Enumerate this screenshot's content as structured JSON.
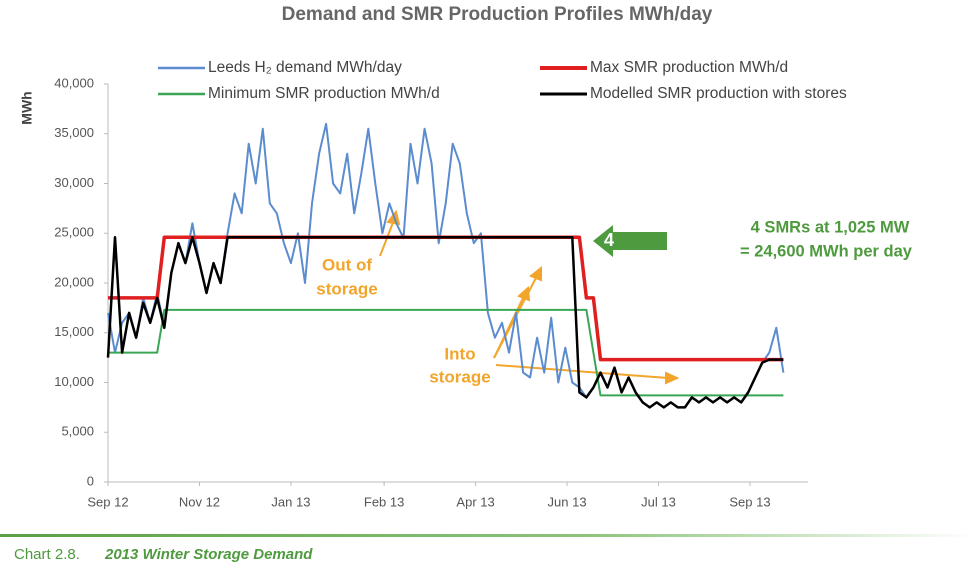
{
  "chart_data": {
    "type": "line",
    "title": "Demand and SMR Production Profiles MWh/day",
    "y_label": "MWh",
    "x": [
      0,
      4,
      8,
      12,
      16,
      20,
      24,
      28,
      32,
      36,
      40,
      44,
      48,
      52,
      56,
      60,
      64,
      68,
      72,
      76,
      80,
      84,
      88,
      92,
      96,
      100,
      104,
      108,
      112,
      116,
      120,
      124,
      128,
      132,
      136,
      140,
      144,
      148,
      152,
      156,
      160,
      164,
      168,
      172,
      176,
      180,
      184,
      188,
      192,
      196,
      200,
      204,
      208,
      212,
      216,
      220,
      224,
      228,
      232,
      236,
      240,
      244,
      248,
      252,
      256,
      260,
      264,
      268,
      272,
      276,
      280,
      284,
      288,
      292,
      296,
      300,
      304,
      308,
      312,
      316,
      320,
      324,
      328,
      332,
      336,
      340,
      344,
      348,
      352,
      356,
      360,
      364,
      368,
      372,
      376,
      380,
      384
    ],
    "xlim": [
      0,
      398
    ],
    "xticks": [
      {
        "value": 0,
        "label": "Sep 12"
      },
      {
        "value": 52,
        "label": "Nov 12"
      },
      {
        "value": 104,
        "label": "Jan 13"
      },
      {
        "value": 157,
        "label": "Feb 13"
      },
      {
        "value": 209,
        "label": "Apr 13"
      },
      {
        "value": 261,
        "label": "Jun 13"
      },
      {
        "value": 313,
        "label": "Jul 13"
      },
      {
        "value": 365,
        "label": "Sep 13"
      }
    ],
    "ylim": [
      0,
      40000
    ],
    "yticks": [
      0,
      {
        "value": 5000,
        "label": "5,000"
      },
      {
        "value": 10000,
        "label": "10,000"
      },
      {
        "value": 15000,
        "label": "15,000"
      },
      {
        "value": 20000,
        "label": "20,000"
      },
      {
        "value": 25000,
        "label": "25,000"
      },
      {
        "value": 30000,
        "label": "30,000"
      },
      {
        "value": 35000,
        "label": "35,000"
      },
      {
        "value": 40000,
        "label": "40,000"
      }
    ],
    "grid": false,
    "legend": "top",
    "series": [
      {
        "name": "Leeds H₂ demand MWh/day",
        "color": "#5b8ccf",
        "values": [
          17000,
          13000,
          16000,
          17000,
          14500,
          18500,
          16000,
          19000,
          15500,
          21000,
          24000,
          22000,
          26000,
          22000,
          19000,
          22000,
          20000,
          25000,
          29000,
          27000,
          34000,
          30000,
          35500,
          28000,
          27000,
          24000,
          22000,
          25000,
          20000,
          28000,
          33000,
          36000,
          30000,
          29000,
          33000,
          27000,
          31000,
          35500,
          30000,
          25000,
          28000,
          26000,
          24500,
          34000,
          30000,
          35500,
          32000,
          24000,
          28000,
          34000,
          32000,
          27000,
          24000,
          25000,
          17000,
          14500,
          16000,
          13000,
          17000,
          11000,
          10500,
          14500,
          11000,
          16500,
          10000,
          13500,
          10000,
          9500,
          8500,
          9500,
          11000,
          9500,
          11500,
          9000,
          10500,
          9000,
          8000,
          7500,
          8000,
          7500,
          8000,
          7500,
          7500,
          8500,
          8000,
          8500,
          8000,
          8500,
          8000,
          8500,
          8000,
          9000,
          10500,
          12000,
          13000,
          15500,
          11000
        ]
      },
      {
        "name": "Max SMR production MWh/d",
        "color": "#e02020",
        "values": [
          18500,
          18500,
          18500,
          18500,
          18500,
          18500,
          18500,
          18500,
          24600,
          24600,
          24600,
          24600,
          24600,
          24600,
          24600,
          24600,
          24600,
          24600,
          24600,
          24600,
          24600,
          24600,
          24600,
          24600,
          24600,
          24600,
          24600,
          24600,
          24600,
          24600,
          24600,
          24600,
          24600,
          24600,
          24600,
          24600,
          24600,
          24600,
          24600,
          24600,
          24600,
          24600,
          24600,
          24600,
          24600,
          24600,
          24600,
          24600,
          24600,
          24600,
          24600,
          24600,
          24600,
          24600,
          24600,
          24600,
          24600,
          24600,
          24600,
          24600,
          24600,
          24600,
          24600,
          24600,
          24600,
          24600,
          24600,
          24600,
          18500,
          18500,
          12300,
          12300,
          12300,
          12300,
          12300,
          12300,
          12300,
          12300,
          12300,
          12300,
          12300,
          12300,
          12300,
          12300,
          12300,
          12300,
          12300,
          12300,
          12300,
          12300,
          12300,
          12300,
          12300,
          12300,
          12300,
          12300,
          12300
        ]
      },
      {
        "name": "Minimum SMR production MWh/d",
        "color": "#3aa655",
        "values": [
          13000,
          13000,
          13000,
          13000,
          13000,
          13000,
          13000,
          13000,
          17300,
          17300,
          17300,
          17300,
          17300,
          17300,
          17300,
          17300,
          17300,
          17300,
          17300,
          17300,
          17300,
          17300,
          17300,
          17300,
          17300,
          17300,
          17300,
          17300,
          17300,
          17300,
          17300,
          17300,
          17300,
          17300,
          17300,
          17300,
          17300,
          17300,
          17300,
          17300,
          17300,
          17300,
          17300,
          17300,
          17300,
          17300,
          17300,
          17300,
          17300,
          17300,
          17300,
          17300,
          17300,
          17300,
          17300,
          17300,
          17300,
          17300,
          17300,
          17300,
          17300,
          17300,
          17300,
          17300,
          17300,
          17300,
          17300,
          17300,
          17300,
          13000,
          8700,
          8700,
          8700,
          8700,
          8700,
          8700,
          8700,
          8700,
          8700,
          8700,
          8700,
          8700,
          8700,
          8700,
          8700,
          8700,
          8700,
          8700,
          8700,
          8700,
          8700,
          8700,
          8700,
          8700,
          8700,
          8700,
          8700
        ]
      },
      {
        "name": "Modelled SMR production with stores",
        "color": "#000000",
        "values": [
          12500,
          24600,
          13000,
          17000,
          14500,
          18000,
          16000,
          18500,
          15500,
          21000,
          24000,
          22000,
          24600,
          22000,
          19000,
          22000,
          20000,
          24600,
          24600,
          24600,
          24600,
          24600,
          24600,
          24600,
          24600,
          24600,
          24600,
          24600,
          24600,
          24600,
          24600,
          24600,
          24600,
          24600,
          24600,
          24600,
          24600,
          24600,
          24600,
          24600,
          24600,
          24600,
          24600,
          24600,
          24600,
          24600,
          24600,
          24600,
          24600,
          24600,
          24600,
          24600,
          24600,
          24600,
          24600,
          24600,
          24600,
          24600,
          24600,
          24600,
          24600,
          24600,
          24600,
          24600,
          24600,
          24600,
          24600,
          9000,
          8500,
          9500,
          11000,
          9500,
          11500,
          9000,
          10500,
          9000,
          8000,
          7500,
          8000,
          7500,
          8000,
          7500,
          7500,
          8500,
          8000,
          8500,
          8000,
          8500,
          8000,
          8500,
          8000,
          9000,
          10500,
          12000,
          12300,
          12300,
          12300
        ]
      }
    ],
    "annotations": [
      "4 SMRs at 1,025 MW",
      "= 24,600 MWh per day",
      "4",
      "Out of",
      "storage",
      "Into",
      "storage"
    ]
  },
  "footer": {
    "label": "Chart 2.8.",
    "caption": "2013 Winter Storage Demand"
  }
}
